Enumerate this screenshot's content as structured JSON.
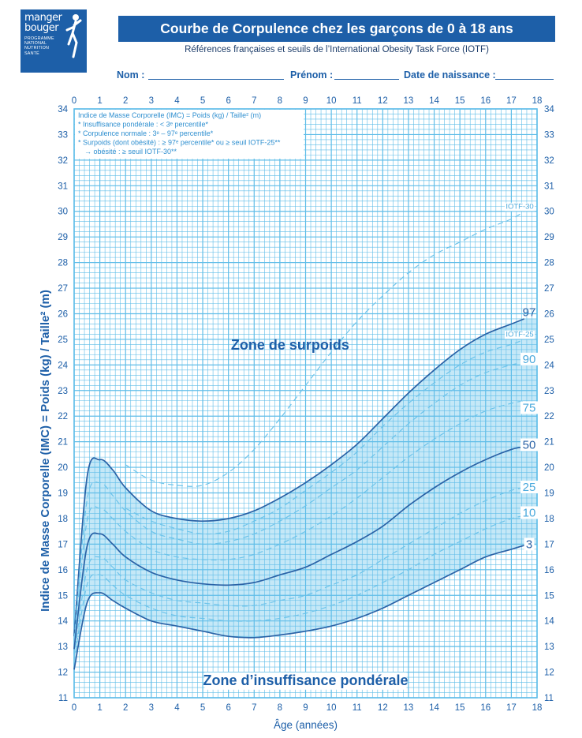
{
  "logo": {
    "line1": "manger",
    "line2": "bouger",
    "sub": [
      "PROGRAMME",
      "NATIONAL",
      "NUTRITION",
      "SANTÉ"
    ]
  },
  "header": {
    "title": "Courbe de Corpulence chez les garçons de 0 à 18 ans",
    "subtitle": "Références françaises et seuils de l’International Obesity Task Force (IOTF)"
  },
  "form": {
    "nom": "Nom :",
    "prenom": "Prénom :",
    "naissance": "Date de naissance :"
  },
  "colors": {
    "grid": "#5fbde8",
    "curve": "#2a62a6",
    "dashed": "#6cc3ea",
    "fill": "#c5e8f7",
    "brand": "#1d5fa8"
  },
  "chart_data": {
    "type": "line",
    "xlabel": "Âge (années)",
    "ylabel": "Indice de Masse Corporelle (IMC) = Poids (kg) / Taille² (m)",
    "xlim": [
      0,
      18
    ],
    "ylim": [
      11,
      34
    ],
    "xticks": [
      0,
      1,
      2,
      3,
      4,
      5,
      6,
      7,
      8,
      9,
      10,
      11,
      12,
      13,
      14,
      15,
      16,
      17,
      18
    ],
    "yticks": [
      11,
      12,
      13,
      14,
      15,
      16,
      17,
      18,
      19,
      20,
      21,
      22,
      23,
      24,
      25,
      26,
      27,
      28,
      29,
      30,
      31,
      32,
      33,
      34
    ],
    "legend_lines": [
      "Indice de Masse Corporelle (IMC) = Poids (kg) / Taille² (m)",
      "* Insuffisance pondérale : < 3ᵉ percentile*",
      "* Corpulence normale : 3ᵉ – 97ᵉ percentile*",
      "* Surpoids (dont obésité) : ≥ 97ᵉ percentile* ou ≥ seuil IOTF-25**",
      "→ obésité : ≥ seuil IOTF-30**"
    ],
    "zones": [
      {
        "label": "Zone de surpoids",
        "x": 8.4,
        "y": 24.6
      },
      {
        "label": "Zone d’insuffisance pondérale",
        "x": 9.0,
        "y": 11.5
      }
    ],
    "x": [
      0,
      0.5,
      1,
      1.5,
      2,
      3,
      4,
      5,
      6,
      7,
      8,
      9,
      10,
      11,
      12,
      13,
      14,
      15,
      16,
      17,
      17.5
    ],
    "series": [
      {
        "name": "97",
        "style": "solid",
        "values": [
          13.4,
          19.6,
          20.3,
          19.9,
          19.2,
          18.3,
          18.0,
          17.9,
          18.0,
          18.3,
          18.8,
          19.4,
          20.1,
          20.9,
          21.9,
          22.9,
          23.8,
          24.6,
          25.2,
          25.6,
          25.8
        ]
      },
      {
        "name": "IOTF-25",
        "style": "dashed",
        "values": [
          null,
          null,
          null,
          null,
          18.4,
          17.9,
          17.6,
          17.4,
          17.5,
          17.9,
          18.4,
          19.1,
          19.8,
          20.6,
          21.6,
          22.5,
          23.3,
          24.0,
          24.5,
          24.8,
          25.0
        ]
      },
      {
        "name": "90",
        "style": "dashed",
        "values": [
          13.3,
          18.7,
          19.4,
          18.9,
          18.3,
          17.5,
          17.2,
          17.0,
          17.1,
          17.4,
          17.9,
          18.5,
          19.2,
          19.9,
          20.8,
          21.7,
          22.5,
          23.2,
          23.7,
          24.0,
          24.1
        ]
      },
      {
        "name": "75",
        "style": "dashed",
        "values": [
          13.1,
          17.9,
          18.4,
          18.0,
          17.5,
          16.8,
          16.5,
          16.4,
          16.4,
          16.6,
          17.0,
          17.5,
          18.1,
          18.8,
          19.6,
          20.4,
          21.1,
          21.7,
          22.2,
          22.5,
          22.6
        ]
      },
      {
        "name": "50",
        "style": "solid",
        "values": [
          12.9,
          16.9,
          17.4,
          17.0,
          16.5,
          15.9,
          15.6,
          15.45,
          15.4,
          15.5,
          15.8,
          16.1,
          16.6,
          17.1,
          17.7,
          18.5,
          19.2,
          19.8,
          20.3,
          20.7,
          20.8
        ]
      },
      {
        "name": "25",
        "style": "dashed",
        "values": [
          12.6,
          16.0,
          16.5,
          16.1,
          15.6,
          15.1,
          14.8,
          14.7,
          14.6,
          14.6,
          14.8,
          15.0,
          15.4,
          15.8,
          16.4,
          17.0,
          17.6,
          18.2,
          18.7,
          19.1,
          19.2
        ]
      },
      {
        "name": "10",
        "style": "dashed",
        "values": [
          12.4,
          15.4,
          15.8,
          15.4,
          15.0,
          14.5,
          14.2,
          14.1,
          14.0,
          14.0,
          14.1,
          14.3,
          14.6,
          15.0,
          15.5,
          16.0,
          16.6,
          17.1,
          17.6,
          18.0,
          18.1
        ]
      },
      {
        "name": "3",
        "style": "solid",
        "values": [
          12.1,
          14.7,
          15.1,
          14.8,
          14.5,
          14.0,
          13.8,
          13.6,
          13.4,
          13.35,
          13.45,
          13.6,
          13.8,
          14.1,
          14.5,
          15.0,
          15.5,
          16.0,
          16.5,
          16.8,
          16.95
        ]
      },
      {
        "name": "IOTF-30",
        "style": "dashed",
        "values": [
          null,
          null,
          null,
          null,
          20.1,
          19.5,
          19.3,
          19.3,
          19.8,
          20.7,
          21.9,
          23.2,
          24.5,
          25.7,
          26.7,
          27.6,
          28.3,
          28.8,
          29.3,
          29.7,
          30.0
        ]
      }
    ]
  }
}
